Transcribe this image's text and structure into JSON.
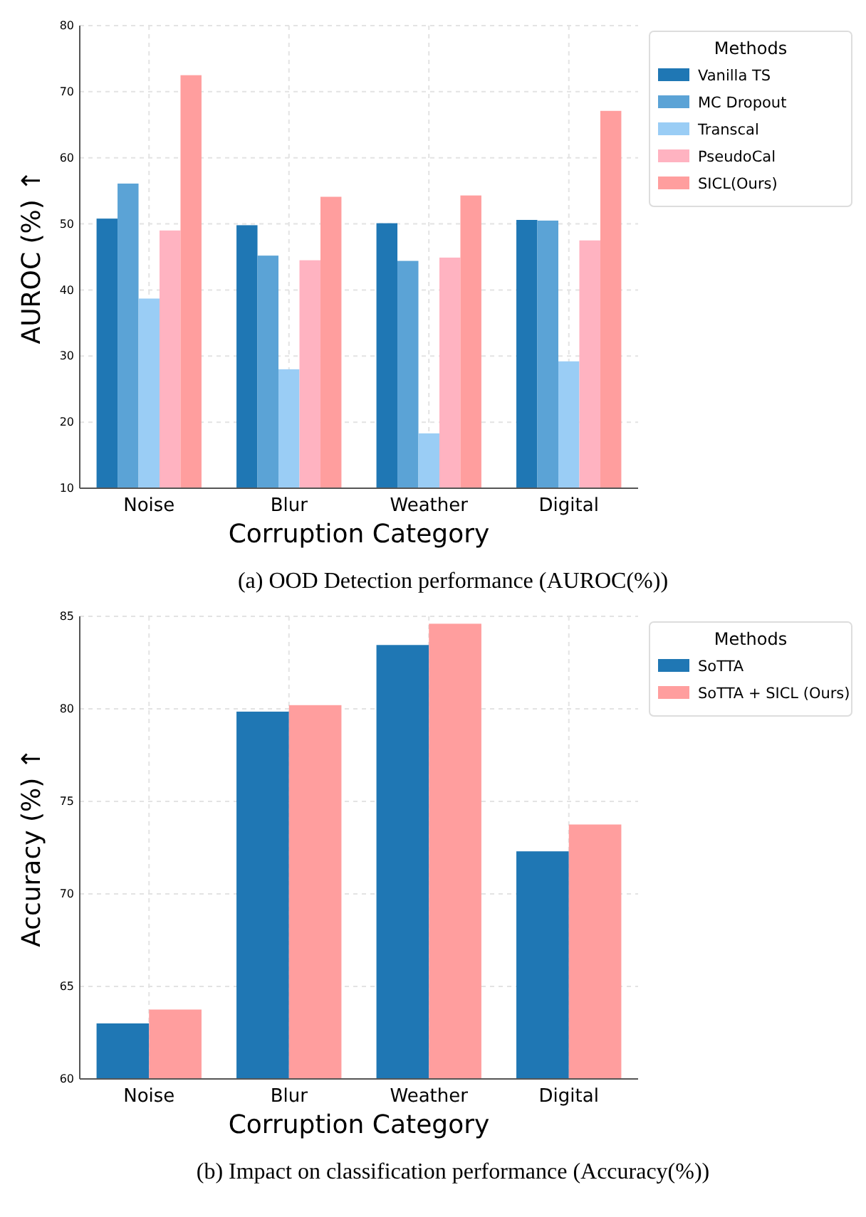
{
  "chart_data": [
    {
      "type": "bar",
      "title": "(a) OOD Detection performance (AUROC(%))",
      "xlabel": "Corruption Category",
      "ylabel": "AUROC (%) ↑",
      "legend_title": "Methods",
      "categories": [
        "Noise",
        "Blur",
        "Weather",
        "Digital"
      ],
      "series": [
        {
          "name": "Vanilla TS",
          "color": "#1f77b4",
          "values": [
            50.8,
            49.8,
            50.1,
            50.6
          ]
        },
        {
          "name": "MC Dropout",
          "color": "#5ba3d6",
          "values": [
            56.1,
            45.2,
            44.4,
            50.5
          ]
        },
        {
          "name": "Transcal",
          "color": "#9acdf5",
          "values": [
            38.7,
            28.0,
            18.3,
            29.2
          ]
        },
        {
          "name": "PseudoCal",
          "color": "#ffb3c1",
          "values": [
            49.0,
            44.5,
            44.9,
            47.5
          ]
        },
        {
          "name": "SICL(Ours)",
          "color": "#ff9e9e",
          "values": [
            72.5,
            54.1,
            54.3,
            67.1
          ]
        }
      ],
      "ylim": [
        10,
        80
      ],
      "yticks": [
        10,
        20,
        30,
        40,
        50,
        60,
        70,
        80
      ],
      "grid": true,
      "legend": "right"
    },
    {
      "type": "bar",
      "title": "(b) Impact on classification performance (Accuracy(%))",
      "xlabel": "Corruption Category",
      "ylabel": "Accuracy (%) ↑",
      "legend_title": "Methods",
      "categories": [
        "Noise",
        "Blur",
        "Weather",
        "Digital"
      ],
      "series": [
        {
          "name": "SoTTA",
          "color": "#1f77b4",
          "values": [
            63.0,
            79.85,
            83.45,
            72.3
          ]
        },
        {
          "name": "SoTTA + SICL (Ours)",
          "color": "#ff9e9e",
          "values": [
            63.75,
            80.2,
            84.6,
            73.75
          ]
        }
      ],
      "ylim": [
        60,
        85
      ],
      "yticks": [
        60,
        65,
        70,
        75,
        80,
        85
      ],
      "grid": true,
      "legend": "right"
    }
  ]
}
